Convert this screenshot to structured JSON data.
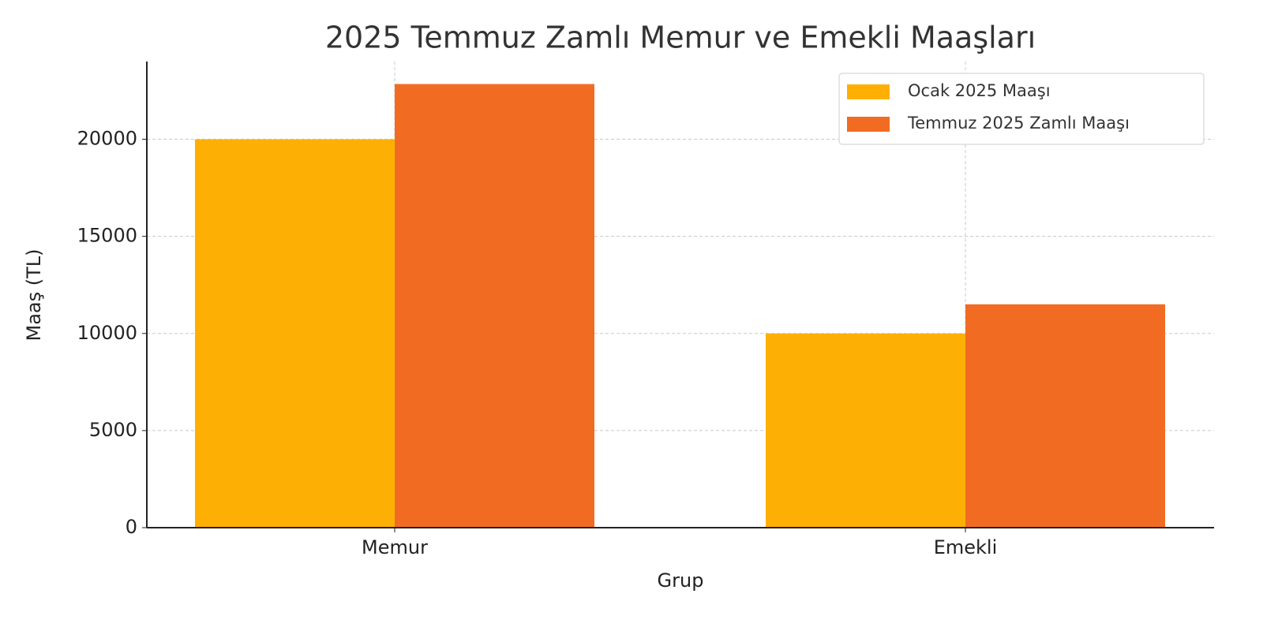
{
  "chart_data": {
    "type": "bar",
    "title": "2025 Temmuz Zamlı Memur ve Emekli Maaşları",
    "x_label": "Grup",
    "y_label": "Maaş (TL)",
    "categories": [
      "Memur",
      "Emekli"
    ],
    "series": [
      {
        "name": "Ocak 2025 Maaşı",
        "color": "#FDB003",
        "values": [
          20000,
          10000
        ]
      },
      {
        "name": "Temmuz 2025 Zamlı Maaşı",
        "color": "#F26B23",
        "values": [
          22840,
          11500
        ]
      }
    ],
    "ylim": [
      0,
      24000
    ],
    "yticks": [
      0,
      5000,
      10000,
      15000,
      20000
    ],
    "grid": true,
    "legend": "upper right"
  }
}
